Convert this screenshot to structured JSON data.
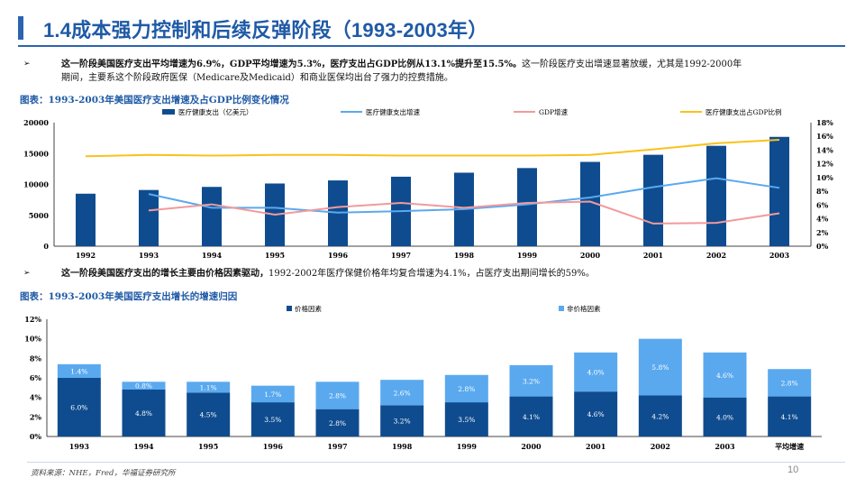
{
  "page": {
    "title": "1.4成本强力控制和后续反弹阶段（1993-2003年）",
    "bullet1_bold": "这一阶段美国医疗支出平均增速为6.9%，GDP平均增速为5.3%，医疗支出占GDP比例从13.1%提升至15.5%。",
    "bullet1_rest": "这一阶段医疗支出增速显著放缓，尤其是1992-2000年",
    "bullet1_line2": "期间，主要系这个阶段政府医保（Medicare及Medicaid）和商业医保均出台了强力的控费措施。",
    "chart1_caption": "图表：1993-2003年美国医疗支出增速及占GDP比例变化情况",
    "bullet2_bold": "这一阶段美国医疗支出的增长主要由价格因素驱动，",
    "bullet2_rest": "1992-2002年医疗保健价格年均复合增速为4.1%，占医疗支出期间增长的59%。",
    "chart2_caption": "图表：1993-2003年美国医疗支出增长的增速归因",
    "source": "资料来源：NHE，Fred，华福证券研究所",
    "page_number": "10",
    "bullet_arrow": "➢"
  },
  "colors": {
    "dark_blue": "#0f4c8f",
    "light_blue": "#5aa9ef",
    "pink": "#f29a9c",
    "yellow": "#f9c21b",
    "title_blue": "#1f5aa6"
  },
  "chart_data": [
    {
      "type": "bar+line",
      "categories": [
        "1992",
        "1993",
        "1994",
        "1995",
        "1996",
        "1997",
        "1998",
        "1999",
        "2000",
        "2001",
        "2002",
        "2003"
      ],
      "series": [
        {
          "name": "医疗健康支出（亿美元）",
          "kind": "bar",
          "axis": "left",
          "values": [
            8500,
            9100,
            9600,
            10150,
            10650,
            11250,
            11900,
            12650,
            13650,
            14800,
            16250,
            17700
          ]
        },
        {
          "name": "医疗健康支出增速",
          "kind": "line",
          "axis": "right",
          "values": [
            null,
            7.6,
            5.6,
            5.6,
            4.9,
            5.1,
            5.4,
            6.1,
            7.1,
            8.6,
            9.9,
            8.5
          ]
        },
        {
          "name": "GDP增速",
          "kind": "line",
          "axis": "right",
          "values": [
            null,
            5.2,
            6.1,
            4.6,
            5.7,
            6.3,
            5.6,
            6.3,
            6.5,
            3.3,
            3.4,
            4.8
          ]
        },
        {
          "name": "医疗健康支出占GDP比例",
          "kind": "line",
          "axis": "right",
          "values": [
            13.1,
            13.3,
            13.2,
            13.3,
            13.3,
            13.2,
            13.2,
            13.2,
            13.3,
            14.1,
            15.0,
            15.5
          ]
        }
      ],
      "left_axis": {
        "min": 0,
        "max": 20000,
        "ticks": [
          "0",
          "5000",
          "10000",
          "15000",
          "20000"
        ]
      },
      "right_axis": {
        "min": 0,
        "max": 18,
        "ticks": [
          "0%",
          "2%",
          "4%",
          "6%",
          "8%",
          "10%",
          "12%",
          "14%",
          "16%",
          "18%"
        ]
      }
    },
    {
      "type": "stacked_bar",
      "categories": [
        "1993",
        "1994",
        "1995",
        "1996",
        "1997",
        "1998",
        "1999",
        "2000",
        "2001",
        "2002",
        "2003",
        "平均增速"
      ],
      "series": [
        {
          "name": "价格因素",
          "values": [
            6.0,
            4.8,
            4.5,
            3.5,
            2.8,
            3.2,
            3.5,
            4.1,
            4.6,
            4.2,
            4.0,
            4.1
          ],
          "labels": [
            "6.0%",
            "4.8%",
            "4.5%",
            "3.5%",
            "2.8%",
            "3.2%",
            "3.5%",
            "4.1%",
            "4.6%",
            "4.2%",
            "4.0%",
            "4.1%"
          ]
        },
        {
          "name": "非价格因素",
          "values": [
            1.4,
            0.8,
            1.1,
            1.7,
            2.8,
            2.6,
            2.8,
            3.2,
            4.0,
            5.8,
            4.6,
            2.8
          ],
          "labels": [
            "1.4%",
            "0.8%",
            "1.1%",
            "1.7%",
            "2.8%",
            "2.6%",
            "2.8%",
            "3.2%",
            "4.0%",
            "5.8%",
            "4.6%",
            "2.8%"
          ]
        }
      ],
      "y_axis": {
        "min": 0,
        "max": 12,
        "ticks": [
          "0%",
          "2%",
          "4%",
          "6%",
          "8%",
          "10%",
          "12%"
        ]
      }
    }
  ]
}
